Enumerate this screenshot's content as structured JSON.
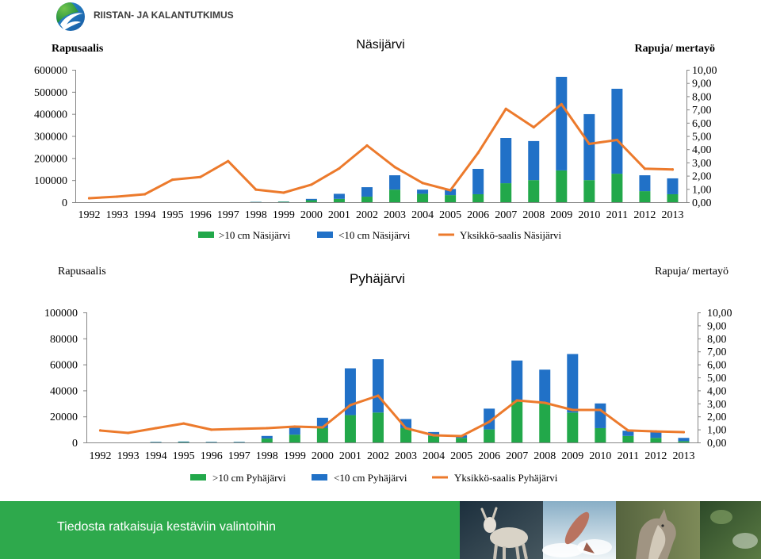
{
  "header": {
    "logo_text": "RIISTAN- JA KALANTUTKIMUS"
  },
  "footer": {
    "slogan": "Tiedosta ratkaisuja kestäviin valintoihin"
  },
  "colors": {
    "bar_over_10cm": "#22a84a",
    "bar_under_10cm": "#2171c7",
    "line_catch_per_unit": "#ec7a2c",
    "footer_green": "#2ea94c",
    "logo_text": "#3c3c3c"
  },
  "chart_data": [
    {
      "type": "bar",
      "stacked": true,
      "title": "Näsijärvi",
      "ylabel": "Rapusaalis",
      "y2label": "Rapuja/ mertayö",
      "categories": [
        "1992",
        "1993",
        "1994",
        "1995",
        "1996",
        "1997",
        "1998",
        "1999",
        "2000",
        "2001",
        "2002",
        "2003",
        "2004",
        "2005",
        "2006",
        "2007",
        "2008",
        "2009",
        "2010",
        "2011",
        "2012",
        "2013"
      ],
      "ylim": [
        0,
        600000
      ],
      "ytick_labels": [
        "0",
        "100000",
        "200000",
        "300000",
        "400000",
        "500000",
        "600000"
      ],
      "y2lim": [
        0,
        10
      ],
      "y2tick_labels": [
        "0,00",
        "1,00",
        "2,00",
        "3,00",
        "4,00",
        "5,00",
        "6,00",
        "7,00",
        "8,00",
        "9,00",
        "10,00"
      ],
      "grid": false,
      "legend": "bottom",
      "series": [
        {
          "name": ">10 cm Näsijärvi",
          "type": "bar",
          "axis": "left",
          "color": "#22a84a",
          "values": [
            0,
            0,
            0,
            0,
            0,
            0,
            1000,
            2000,
            9000,
            15000,
            25000,
            57000,
            38000,
            32000,
            36000,
            86000,
            100000,
            144000,
            100000,
            129000,
            50000,
            36000
          ]
        },
        {
          "name": "<10 cm Näsijärvi",
          "type": "bar",
          "axis": "left",
          "color": "#2171c7",
          "values": [
            0,
            0,
            0,
            0,
            0,
            0,
            1000,
            1000,
            6000,
            23000,
            43000,
            65000,
            19000,
            28000,
            115000,
            205000,
            177000,
            424000,
            299000,
            385000,
            72000,
            72000
          ]
        },
        {
          "name": "Yksikkö-saalis Näsijärvi",
          "type": "line",
          "axis": "right",
          "color": "#ec7a2c",
          "values": [
            0.3,
            0.42,
            0.6,
            1.7,
            1.9,
            3.1,
            0.95,
            0.72,
            1.33,
            2.55,
            4.28,
            2.65,
            1.45,
            0.9,
            3.73,
            7.05,
            5.66,
            7.4,
            4.4,
            4.7,
            2.53,
            2.47
          ]
        }
      ]
    },
    {
      "type": "bar",
      "stacked": true,
      "title": "Pyhäjärvi",
      "ylabel": "Rapusaalis",
      "y2label": "Rapuja/ mertayö",
      "categories": [
        "1992",
        "1993",
        "1994",
        "1995",
        "1996",
        "1997",
        "1998",
        "1999",
        "2000",
        "2001",
        "2002",
        "2003",
        "2004",
        "2005",
        "2006",
        "2007",
        "2008",
        "2009",
        "2010",
        "2011",
        "2012",
        "2013"
      ],
      "ylim": [
        0,
        100000
      ],
      "ytick_labels": [
        "0",
        "20000",
        "40000",
        "60000",
        "80000",
        "100000"
      ],
      "y2lim": [
        0,
        10
      ],
      "y2tick_labels": [
        "0,00",
        "1,00",
        "2,00",
        "3,00",
        "4,00",
        "5,00",
        "6,00",
        "7,00",
        "8,00",
        "9,00",
        "10,00"
      ],
      "grid": false,
      "legend": "bottom",
      "series": [
        {
          "name": ">10 cm Pyhäjärvi",
          "type": "bar",
          "axis": "left",
          "color": "#22a84a",
          "values": [
            0,
            0,
            200,
            300,
            200,
            200,
            3000,
            6000,
            11000,
            21000,
            23000,
            11000,
            5000,
            3500,
            10000,
            32000,
            30000,
            23000,
            11000,
            5000,
            3500,
            1000
          ]
        },
        {
          "name": "<10 cm Pyhäjärvi",
          "type": "bar",
          "axis": "left",
          "color": "#2171c7",
          "values": [
            0,
            0,
            300,
            400,
            300,
            300,
            2000,
            6000,
            8000,
            36000,
            41000,
            7000,
            3000,
            2000,
            16000,
            31000,
            26000,
            45000,
            19000,
            4000,
            4500,
            2500
          ]
        },
        {
          "name": "Yksikkö-saalis Pyhäjärvi",
          "type": "line",
          "axis": "right",
          "color": "#ec7a2c",
          "values": [
            0.92,
            0.73,
            1.1,
            1.46,
            0.98,
            1.04,
            1.1,
            1.22,
            1.16,
            2.87,
            3.6,
            1.1,
            0.55,
            0.49,
            1.59,
            3.23,
            3.05,
            2.5,
            2.5,
            0.92,
            0.85,
            0.79
          ]
        }
      ]
    }
  ]
}
